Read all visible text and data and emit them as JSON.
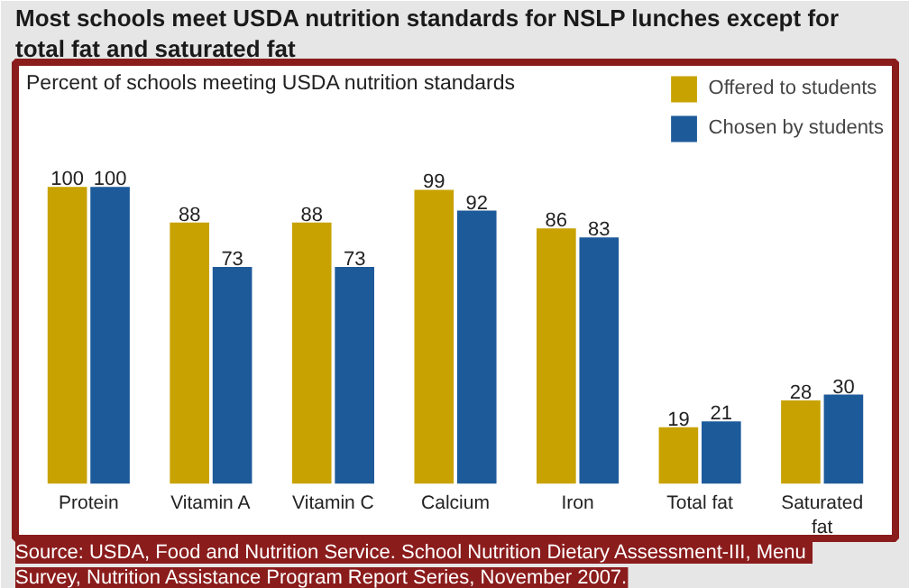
{
  "chart_data": {
    "type": "bar",
    "title": "Most schools meet USDA nutrition standards for NSLP lunches except for total fat and saturated fat",
    "ylabel": "Percent of schools meeting USDA nutrition standards",
    "categories": [
      "Protein",
      "Vitamin A",
      "Vitamin C",
      "Calcium",
      "Iron",
      "Total fat",
      "Saturated fat"
    ],
    "series": [
      {
        "name": "Offered to students",
        "color": "#c8a200",
        "values": [
          100,
          88,
          88,
          99,
          86,
          19,
          28
        ]
      },
      {
        "name": "Chosen by students",
        "color": "#1d5a9a",
        "values": [
          100,
          73,
          73,
          92,
          83,
          21,
          30
        ]
      }
    ],
    "data_labels": true,
    "legend": "top right",
    "grid": false,
    "annotations": [
      "Source:  USDA, Food and Nutrition Service. School Nutrition Dietary Assessment-III, Menu Survey, Nutrition Assistance Program Report Series, November 2007."
    ]
  }
}
